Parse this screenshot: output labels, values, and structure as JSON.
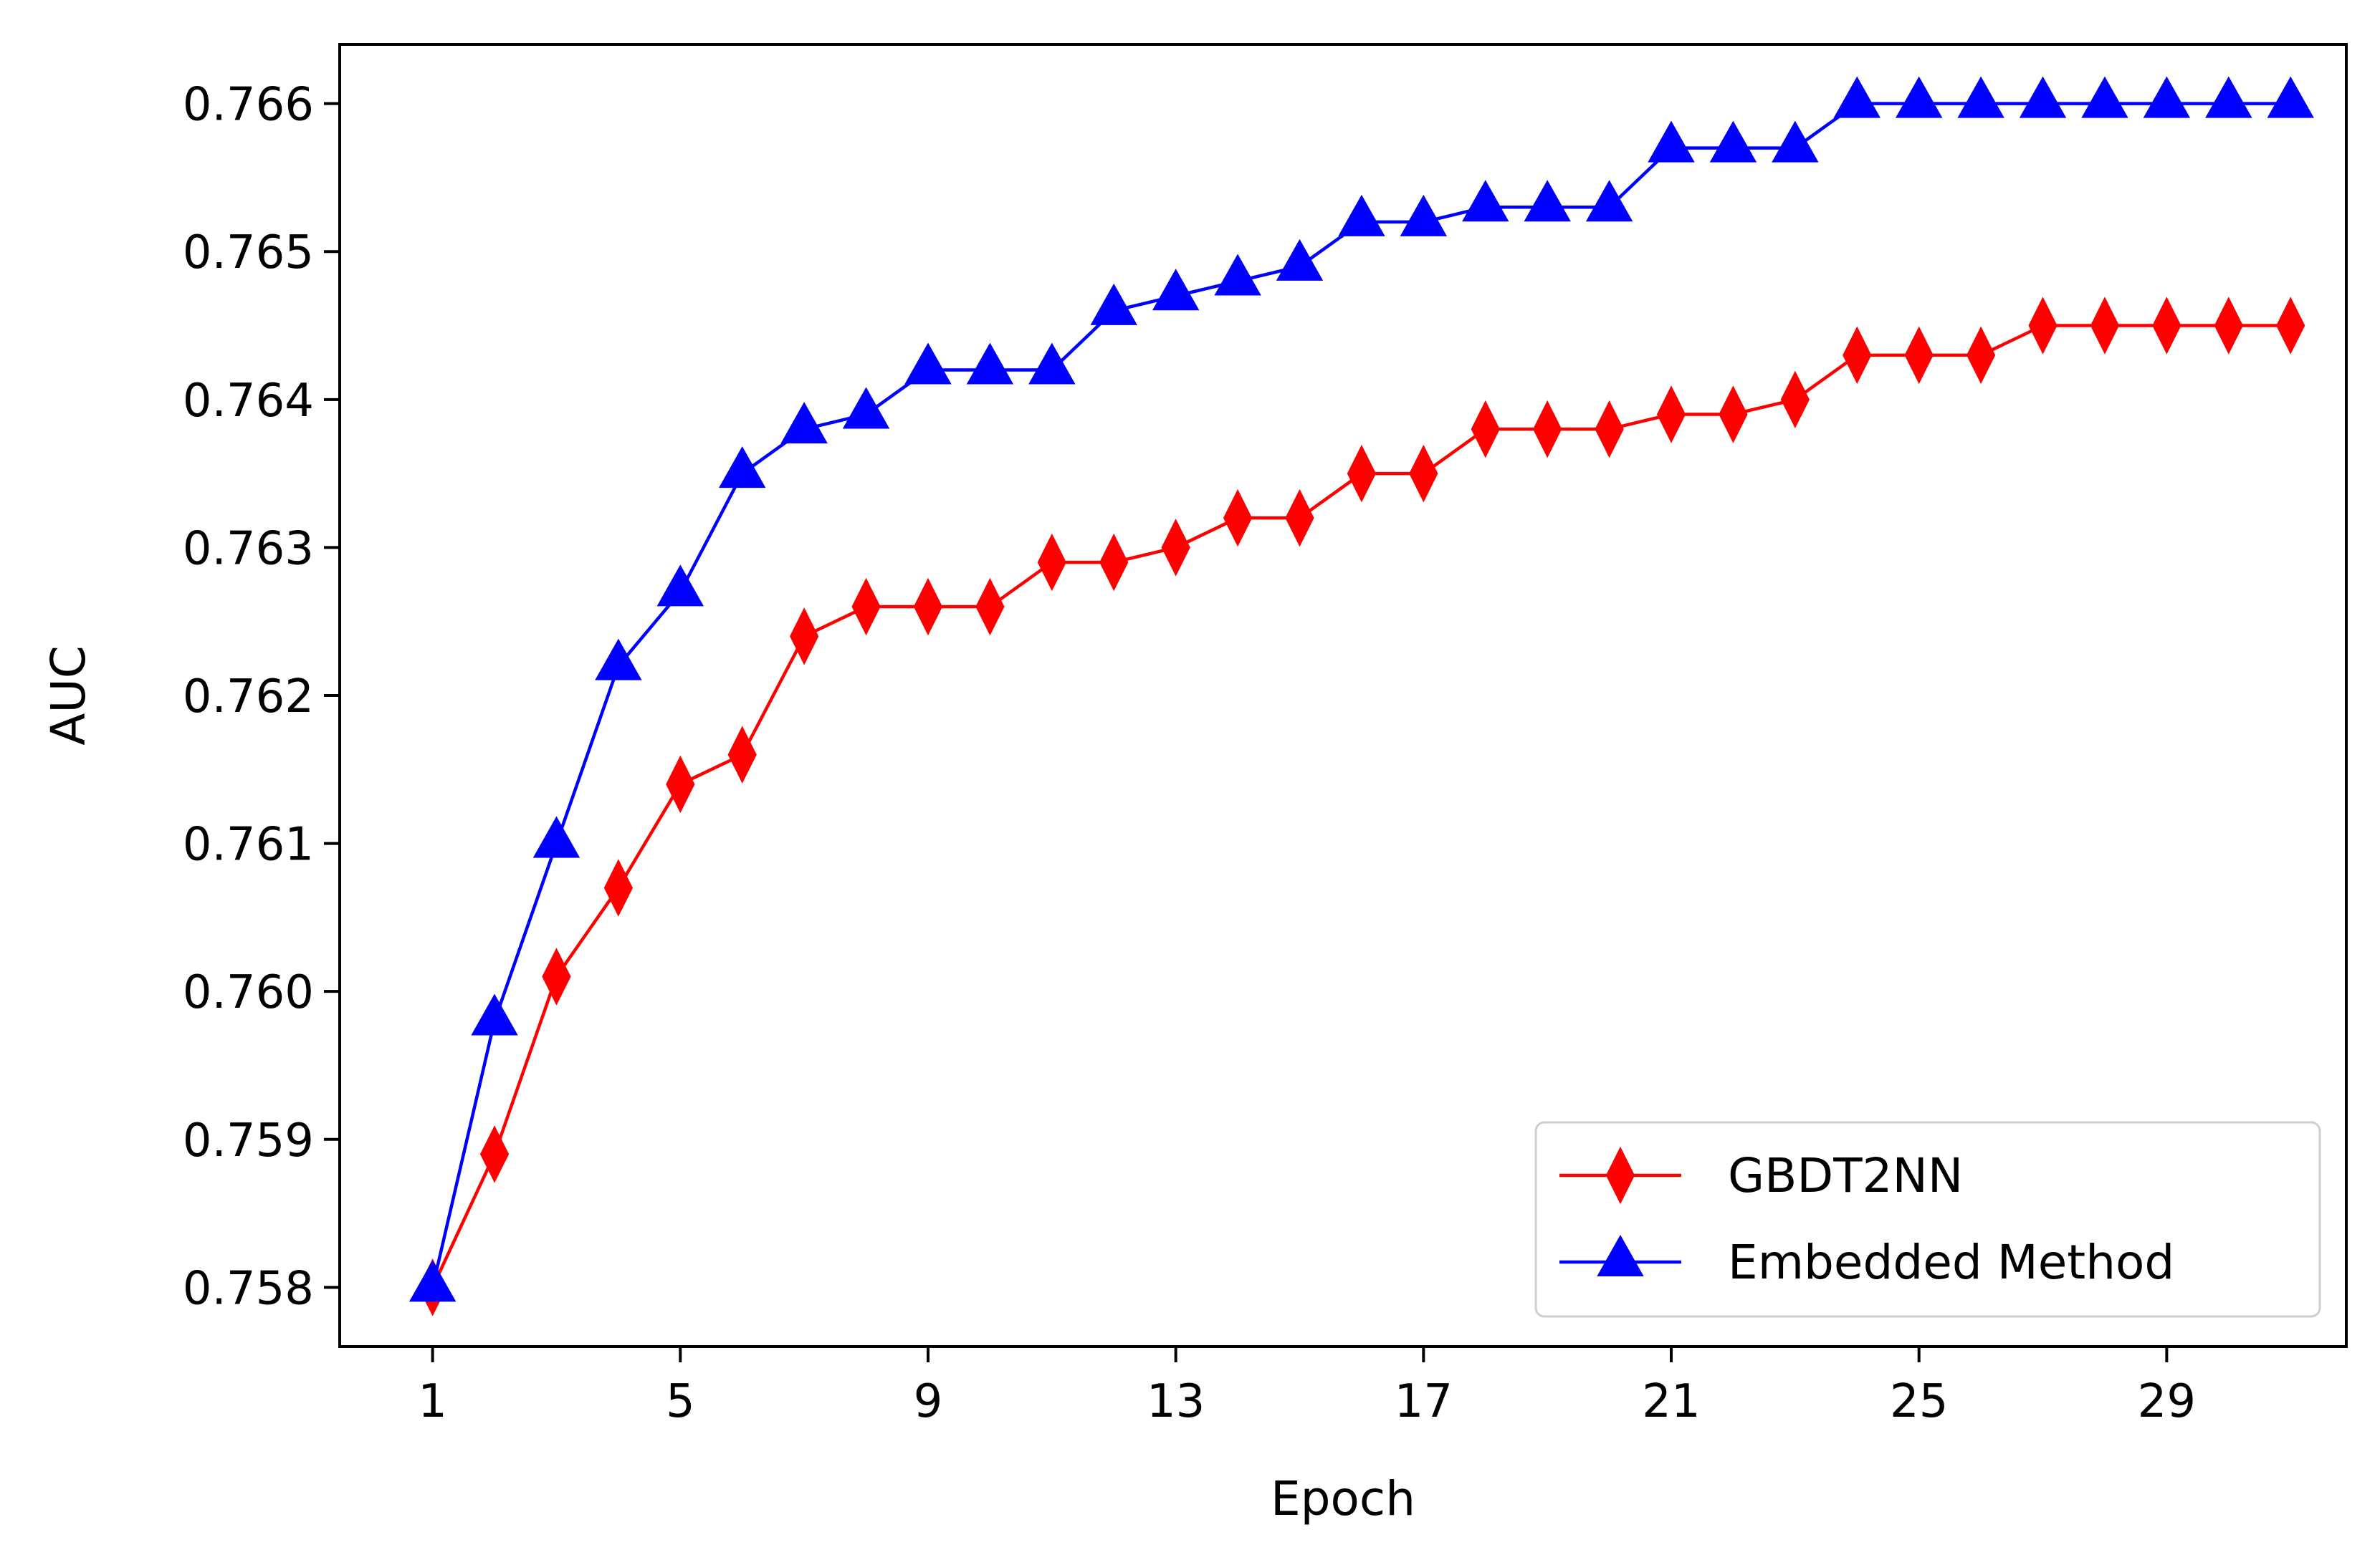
{
  "chart_data": {
    "type": "line",
    "title": "",
    "xlabel": "Epoch",
    "ylabel": "AUC",
    "xlim": [
      -0.5,
      31.9
    ],
    "ylim": [
      0.7576,
      0.7664
    ],
    "x": [
      1,
      2,
      3,
      4,
      5,
      6,
      7,
      8,
      9,
      10,
      11,
      12,
      13,
      14,
      15,
      16,
      17,
      18,
      19,
      20,
      21,
      22,
      23,
      24,
      25,
      26,
      27,
      28,
      29,
      30,
      31
    ],
    "x_ticks": [
      1,
      5,
      9,
      13,
      17,
      21,
      25,
      29
    ],
    "x_tick_labels": [
      "1",
      "5",
      "9",
      "13",
      "17",
      "21",
      "25",
      "29"
    ],
    "y_ticks": [
      0.758,
      0.759,
      0.76,
      0.761,
      0.762,
      0.763,
      0.764,
      0.765,
      0.766
    ],
    "y_tick_labels": [
      "0.758",
      "0.759",
      "0.760",
      "0.761",
      "0.762",
      "0.763",
      "0.764",
      "0.765",
      "0.766"
    ],
    "grid": false,
    "legend_position": "bottom-right",
    "series": [
      {
        "name": "GBDT2NN",
        "color": "#ff0000",
        "marker": "thin_diamond",
        "values": [
          0.758,
          0.7589,
          0.7601,
          0.7607,
          0.7614,
          0.7616,
          0.7624,
          0.7626,
          0.7626,
          0.7626,
          0.7629,
          0.7629,
          0.763,
          0.7632,
          0.7632,
          0.7635,
          0.7635,
          0.7638,
          0.7638,
          0.7638,
          0.7639,
          0.7639,
          0.764,
          0.7643,
          0.7643,
          0.7643,
          0.7645,
          0.7645,
          0.7645,
          0.7645,
          0.7645
        ]
      },
      {
        "name": "Embedded Method",
        "color": "#0000ff",
        "marker": "triangle_up",
        "values": [
          0.758,
          0.7598,
          0.761,
          0.7622,
          0.7627,
          0.7635,
          0.7638,
          0.7639,
          0.7642,
          0.7642,
          0.7642,
          0.7646,
          0.7647,
          0.7648,
          0.7649,
          0.7652,
          0.7652,
          0.7653,
          0.7653,
          0.7653,
          0.7657,
          0.7657,
          0.7657,
          0.766,
          0.766,
          0.766,
          0.766,
          0.766,
          0.766,
          0.766,
          0.766
        ]
      }
    ]
  }
}
